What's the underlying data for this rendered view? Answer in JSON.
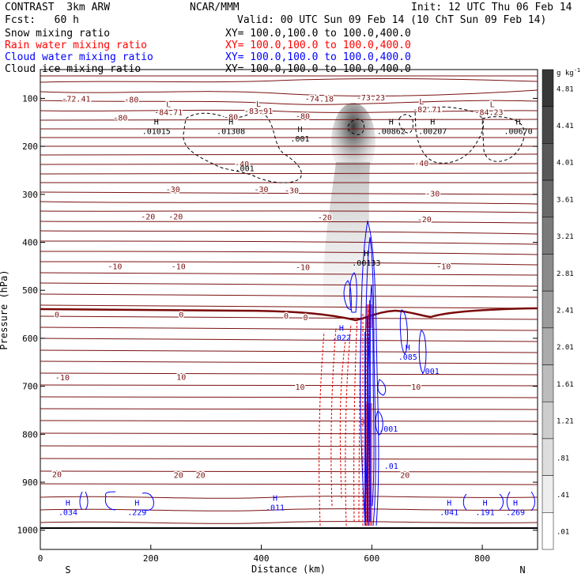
{
  "header": {
    "model": "CONTRAST  3km ARW",
    "org": "NCAR/MMM",
    "init": "Init: 12 UTC Thu 06 Feb 14",
    "fcst": "Fcst:   60 h",
    "valid": "Valid: 00 UTC Sun 09 Feb 14 (10 ChT Sun 09 Feb 14)"
  },
  "legend": [
    {
      "name": "Snow mixing ratio",
      "xy": "XY= 100.0,100.0 to 100.0,400.0",
      "color": "#000000"
    },
    {
      "name": "Rain water mixing ratio",
      "xy": "XY= 100.0,100.0 to 100.0,400.0",
      "color": "#ff0000"
    },
    {
      "name": "Cloud water mixing ratio",
      "xy": "XY= 100.0,100.0 to 100.0,400.0",
      "color": "#0000ff"
    },
    {
      "name": "Cloud ice mixing ratio",
      "xy": "XY= 100.0,100.0 to 100.0,400.0",
      "color": "#000000"
    }
  ],
  "chart_data": {
    "type": "contour cross-section",
    "xlabel": "Distance (km)",
    "ylabel": "Pressure (hPa)",
    "xlim": [
      0,
      900
    ],
    "ylim": [
      1040,
      40
    ],
    "x_ticks": [
      "0",
      "200",
      "400",
      "600",
      "800"
    ],
    "x_tick_values": [
      0,
      200,
      400,
      600,
      800
    ],
    "y_ticks": [
      "100",
      "200",
      "300",
      "400",
      "500",
      "600",
      "700",
      "800",
      "900",
      "1000"
    ],
    "y_tick_values": [
      100,
      200,
      300,
      400,
      500,
      600,
      700,
      800,
      900,
      1000
    ],
    "end_labels": {
      "left": "S",
      "right": "N"
    },
    "colorbar": {
      "units": "g kg",
      "units_sup": "-1",
      "labels": [
        "4.81",
        "4.41",
        "4.01",
        "3.61",
        "3.21",
        "2.81",
        "2.41",
        "2.01",
        "1.61",
        "1.21",
        ".81",
        ".41",
        ".01"
      ],
      "levels": [
        4.81,
        4.41,
        4.01,
        3.61,
        3.21,
        2.81,
        2.41,
        2.01,
        1.61,
        1.21,
        0.81,
        0.41,
        0.01
      ]
    },
    "temperature_labels": [
      {
        "text": "-72.41",
        "x": 65,
        "p": 100
      },
      {
        "text": "-80",
        "x": 165,
        "p": 102
      },
      {
        "text": "L",
        "x": 232,
        "p": 112
      },
      {
        "text": "-84.71",
        "x": 232,
        "p": 128
      },
      {
        "text": "-80",
        "x": 145,
        "p": 140
      },
      {
        "text": "L",
        "x": 395,
        "p": 111
      },
      {
        "text": "-83.91",
        "x": 395,
        "p": 126
      },
      {
        "text": "-80",
        "x": 345,
        "p": 138
      },
      {
        "text": "-80",
        "x": 475,
        "p": 136
      },
      {
        "text": "-74.18",
        "x": 505,
        "p": 100
      },
      {
        "text": "-73.23",
        "x": 598,
        "p": 98
      },
      {
        "text": "L",
        "x": 690,
        "p": 106
      },
      {
        "text": "-82.71",
        "x": 700,
        "p": 122
      },
      {
        "text": "L",
        "x": 818,
        "p": 112
      },
      {
        "text": "-84.23",
        "x": 812,
        "p": 128
      },
      {
        "text": "-40",
        "x": 365,
        "p": 236
      },
      {
        "text": "-40",
        "x": 690,
        "p": 234
      },
      {
        "text": "-30",
        "x": 240,
        "p": 289
      },
      {
        "text": "-30",
        "x": 400,
        "p": 289
      },
      {
        "text": "-30",
        "x": 455,
        "p": 291
      },
      {
        "text": "-30",
        "x": 710,
        "p": 298
      },
      {
        "text": "-20",
        "x": 195,
        "p": 346
      },
      {
        "text": "-20",
        "x": 245,
        "p": 346
      },
      {
        "text": "-20",
        "x": 515,
        "p": 347
      },
      {
        "text": "-20",
        "x": 695,
        "p": 351
      },
      {
        "text": "-10",
        "x": 135,
        "p": 449
      },
      {
        "text": "-10",
        "x": 250,
        "p": 449
      },
      {
        "text": "-10",
        "x": 475,
        "p": 451
      },
      {
        "text": "-10",
        "x": 730,
        "p": 449
      },
      {
        "text": "0",
        "x": 30,
        "p": 550
      },
      {
        "text": "0",
        "x": 255,
        "p": 550
      },
      {
        "text": "0",
        "x": 445,
        "p": 552
      },
      {
        "text": "0",
        "x": 480,
        "p": 556
      },
      {
        "text": "-10",
        "x": 40,
        "p": 681
      },
      {
        "text": "10",
        "x": 255,
        "p": 680
      },
      {
        "text": "10",
        "x": 470,
        "p": 701
      },
      {
        "text": "10",
        "x": 680,
        "p": 701
      },
      {
        "text": "20",
        "x": 30,
        "p": 883
      },
      {
        "text": "20",
        "x": 250,
        "p": 884
      },
      {
        "text": "20",
        "x": 290,
        "p": 884
      },
      {
        "text": "20",
        "x": 660,
        "p": 884
      }
    ],
    "black_extrema": [
      {
        "mark": "H",
        "value": ".01015",
        "x": 210,
        "p": 168
      },
      {
        "mark": "H",
        "value": ".01308",
        "x": 345,
        "p": 168
      },
      {
        "mark": "H",
        "value": ".001",
        "x": 470,
        "p": 183
      },
      {
        "mark": "H",
        "value": ".00862",
        "x": 635,
        "p": 168
      },
      {
        "mark": "H",
        "value": ".00207",
        "x": 710,
        "p": 168
      },
      {
        "mark": "H",
        "value": ".00670",
        "x": 865,
        "p": 168
      },
      {
        "mark": "",
        "value": ".001",
        "x": 370,
        "p": 245
      },
      {
        "mark": "H",
        "value": ".00133",
        "x": 590,
        "p": 442
      }
    ],
    "blue_labels": [
      {
        "mark": "H",
        "value": ".034",
        "x": 50,
        "p": 962
      },
      {
        "mark": "H",
        "value": ".229",
        "x": 175,
        "p": 962
      },
      {
        "mark": "H",
        "value": ".011",
        "x": 425,
        "p": 952
      },
      {
        "mark": "H",
        "value": ".022",
        "x": 545,
        "p": 598
      },
      {
        "mark": "H",
        "value": ".085",
        "x": 665,
        "p": 638
      },
      {
        "mark": "",
        "value": ".001",
        "x": 705,
        "p": 668
      },
      {
        "mark": "",
        "value": ".001",
        "x": 630,
        "p": 788
      },
      {
        "mark": "",
        "value": ".01",
        "x": 635,
        "p": 865
      },
      {
        "mark": "H",
        "value": ".041",
        "x": 740,
        "p": 962
      },
      {
        "mark": "H",
        "value": ".191",
        "x": 805,
        "p": 962
      },
      {
        "mark": "H",
        "value": ".269",
        "x": 860,
        "p": 962
      }
    ],
    "rain_label": {
      "value": "3",
      "x": 583,
      "p": 773
    }
  }
}
